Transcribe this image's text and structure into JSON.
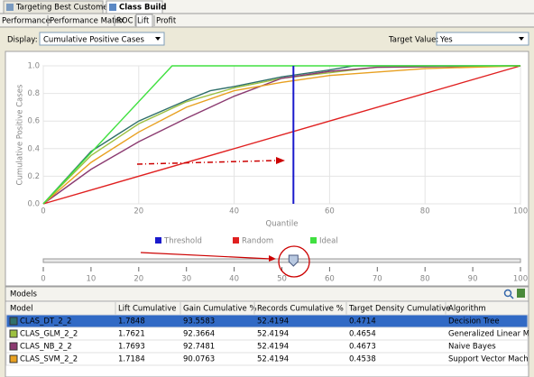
{
  "tabs": [
    "Targeting Best Customers",
    "Class Build"
  ],
  "subtabs": [
    "Performance",
    "Performance Matrix",
    "ROC",
    "Lift",
    "Profit"
  ],
  "display": {
    "label": "Display:",
    "value": "Cumulative Positive Cases"
  },
  "target": {
    "label": "Target Value:",
    "value": "Yes"
  },
  "chart_data": {
    "type": "line",
    "xlabel": "Quantile",
    "ylabel": "Cumulative Positive Cases",
    "xlim": [
      0,
      100
    ],
    "ylim": [
      0,
      1
    ],
    "xticks": [
      0,
      20,
      40,
      60,
      80,
      100
    ],
    "yticks": [
      {
        "value": 0,
        "label": "0.0"
      },
      {
        "value": 0.2,
        "label": "0.2"
      },
      {
        "value": 0.4,
        "label": "0.4"
      },
      {
        "value": 0.6,
        "label": "0.6"
      },
      {
        "value": 0.8,
        "label": "0.8"
      },
      {
        "value": 1,
        "label": "1.0"
      }
    ],
    "series": [
      {
        "color": "#2f6f6a",
        "x": [
          0,
          10,
          20,
          30,
          35,
          40,
          50,
          60,
          65,
          100
        ],
        "values": [
          0,
          0.38,
          0.6,
          0.75,
          0.82,
          0.85,
          0.92,
          0.97,
          1,
          1
        ]
      },
      {
        "color": "#9cc040",
        "x": [
          0,
          10,
          20,
          30,
          40,
          50,
          60,
          70,
          100
        ],
        "values": [
          0,
          0.35,
          0.58,
          0.74,
          0.84,
          0.91,
          0.95,
          0.99,
          1
        ]
      },
      {
        "color": "#8b3a70",
        "x": [
          0,
          10,
          20,
          30,
          40,
          50,
          60,
          70,
          100
        ],
        "values": [
          0,
          0.25,
          0.45,
          0.62,
          0.78,
          0.91,
          0.96,
          0.99,
          1
        ]
      },
      {
        "color": "#e8a020",
        "x": [
          0,
          10,
          20,
          30,
          40,
          50,
          60,
          80,
          100
        ],
        "values": [
          0,
          0.3,
          0.52,
          0.7,
          0.82,
          0.88,
          0.93,
          0.98,
          1
        ]
      },
      {
        "name": "Random",
        "color": "#e02020",
        "x": [
          0,
          100
        ],
        "values": [
          0,
          1
        ]
      },
      {
        "name": "Ideal",
        "color": "#40e040",
        "x": [
          0,
          27,
          100
        ],
        "values": [
          0,
          1,
          1
        ]
      }
    ],
    "threshold": {
      "name": "Threshold",
      "color": "#1a1acc",
      "x": 52.4194
    },
    "slider_ticks": [
      0,
      10,
      20,
      30,
      40,
      50,
      60,
      70,
      80,
      90,
      100
    ]
  },
  "models": {
    "title": "Models",
    "columns": [
      "Model",
      "Lift Cumulative",
      "Gain Cumulative %",
      "Records Cumulative %",
      "Target Density Cumulative",
      "Algorithm"
    ],
    "rows": [
      [
        "CLAS_DT_2_2",
        "1.7848",
        "93.5583",
        "52.4194",
        "0.4714",
        "Decision Tree"
      ],
      [
        "CLAS_GLM_2_2",
        "1.7621",
        "92.3664",
        "52.4194",
        "0.4654",
        "Generalized Linear Model"
      ],
      [
        "CLAS_NB_2_2",
        "1.7693",
        "92.7481",
        "52.4194",
        "0.4673",
        "Naive Bayes"
      ],
      [
        "CLAS_SVM_2_2",
        "1.7184",
        "90.0763",
        "52.4194",
        "0.4538",
        "Support Vector Machine"
      ]
    ]
  }
}
